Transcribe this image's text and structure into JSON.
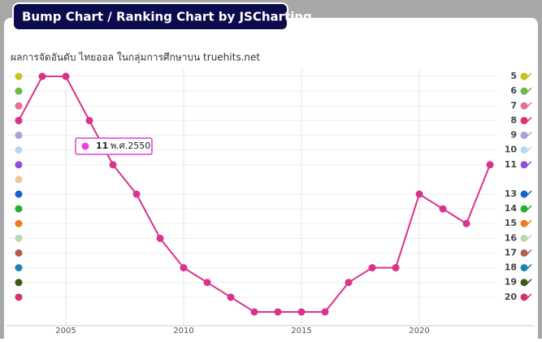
{
  "header": {
    "title": "Bump Chart / Ranking Chart by JSCharting"
  },
  "chart_data": {
    "type": "line",
    "subtitle": "ผลการจัดอันดับ ไทยออล ในกลุ่มการศึกษาบน truehits.net",
    "x": [
      2003,
      2004,
      2005,
      2006,
      2007,
      2008,
      2009,
      2010,
      2011,
      2012,
      2013,
      2014,
      2015,
      2016,
      2017,
      2018,
      2019,
      2020,
      2021,
      2022,
      2023
    ],
    "series": [
      {
        "color": "#d9338c",
        "values": [
          8,
          5,
          5,
          8,
          11,
          13,
          16,
          18,
          19,
          20,
          21,
          21,
          21,
          21,
          19,
          18,
          18,
          13,
          14,
          15,
          11
        ]
      }
    ],
    "xlim": [
      2003,
      2023
    ],
    "xticks": [
      2005,
      2010,
      2015,
      2020
    ],
    "ylim": [
      4.5,
      21.5
    ],
    "y_reversed": true,
    "yticks": [
      5,
      6,
      7,
      8,
      9,
      10,
      11,
      13,
      14,
      15,
      16,
      17,
      18,
      19,
      20
    ],
    "grid": true,
    "rank_markers": {
      "ranks": [
        5,
        6,
        7,
        8,
        9,
        10,
        11,
        12,
        13,
        14,
        15,
        16,
        17,
        18,
        19,
        20
      ],
      "colors": [
        "#c3c323",
        "#6cb84a",
        "#e07095",
        "#de2f6e",
        "#a3a3e0",
        "#b5d9f0",
        "#9150d3",
        "#e8cb95",
        "#1462d2",
        "#22b033",
        "#f07a1f",
        "#bbd7b3",
        "#b05f52",
        "#2183b3",
        "#3d5c12",
        "#d33070"
      ]
    },
    "tooltip": {
      "value_label": "11",
      "date": "พ.ศ.2550"
    }
  }
}
